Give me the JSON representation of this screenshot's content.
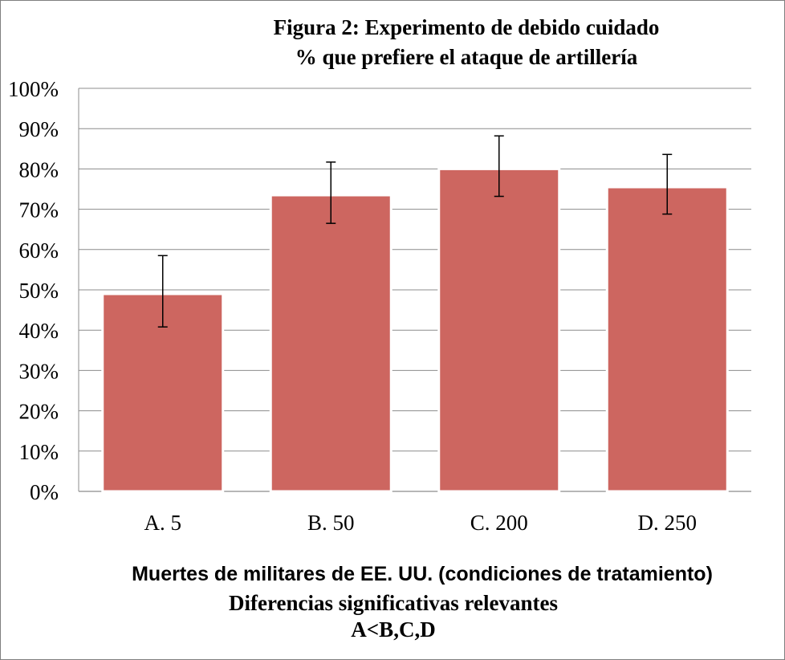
{
  "chart_data": {
    "type": "bar",
    "title": "Figura 2: Experimento de debido cuidado",
    "subtitle": "% que prefiere el ataque de artillería",
    "categories": [
      "A. 5",
      "B. 50",
      "C. 200",
      "D. 250"
    ],
    "values": [
      49,
      73.5,
      80,
      75.5
    ],
    "error_low": [
      40.8,
      66.5,
      73.2,
      68.8
    ],
    "error_high": [
      58.5,
      81.7,
      88.2,
      83.6
    ],
    "ylim": [
      0,
      100
    ],
    "yticks": [
      0,
      10,
      20,
      30,
      40,
      50,
      60,
      70,
      80,
      90,
      100
    ],
    "ytick_suffix": "%",
    "xlabel": "Muertes de militares de EE. UU. (condiciones de tratamiento)",
    "ylabel": "",
    "grid": true,
    "bar_color": "#cd6660"
  },
  "notes": {
    "line1": "Diferencias significativas relevantes",
    "line2": "A<B,C,D"
  }
}
